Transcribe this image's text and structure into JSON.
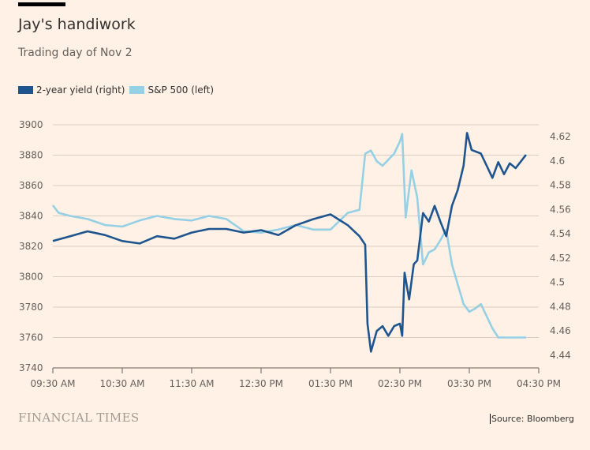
{
  "header": {
    "title": "Jay's handiwork",
    "subtitle": "Trading day of Nov 2"
  },
  "footer": {
    "brand": "FINANCIAL TIMES",
    "source": "Source: Bloomberg"
  },
  "colors": {
    "background": "#fff1e5",
    "yield": "#1f558e",
    "sp500": "#96d0e5",
    "grid": "#d8cdc3"
  },
  "chart_data": {
    "type": "line",
    "title": "Jay's handiwork",
    "subtitle": "Trading day of Nov 2",
    "legend_position": "top-left",
    "grid": true,
    "x_ticks": [
      "09:30 AM",
      "10:30 AM",
      "11:30 AM",
      "12:30 PM",
      "01:30 PM",
      "02:30 PM",
      "03:30 PM",
      "04:30 PM"
    ],
    "xlim": [
      "09:30",
      "16:30"
    ],
    "left_axis": {
      "ylim": [
        3740,
        3900
      ],
      "ticks": [
        "3900",
        "3880",
        "3860",
        "3840",
        "3820",
        "3800",
        "3780",
        "3760",
        "3740"
      ]
    },
    "right_axis": {
      "ylim": [
        4.44,
        4.62
      ],
      "ticks": [
        "4.62",
        "4.6",
        "4.58",
        "4.56",
        "4.54",
        "4.52",
        "4.5",
        "4.48",
        "4.46",
        "4.44"
      ]
    },
    "series": [
      {
        "name": "2-year yield (right)",
        "axis": "right",
        "points": [
          [
            "09:30",
            4.534
          ],
          [
            "09:45",
            4.538
          ],
          [
            "10:00",
            4.542
          ],
          [
            "10:15",
            4.539
          ],
          [
            "10:30",
            4.534
          ],
          [
            "10:45",
            4.532
          ],
          [
            "11:00",
            4.538
          ],
          [
            "11:15",
            4.536
          ],
          [
            "11:30",
            4.541
          ],
          [
            "11:45",
            4.544
          ],
          [
            "12:00",
            4.544
          ],
          [
            "12:15",
            4.541
          ],
          [
            "12:30",
            4.543
          ],
          [
            "12:45",
            4.539
          ],
          [
            "13:00",
            4.547
          ],
          [
            "13:15",
            4.552
          ],
          [
            "13:30",
            4.556
          ],
          [
            "13:45",
            4.547
          ],
          [
            "13:55",
            4.538
          ],
          [
            "14:00",
            4.531
          ],
          [
            "14:02",
            4.466
          ],
          [
            "14:05",
            4.443
          ],
          [
            "14:10",
            4.46
          ],
          [
            "14:15",
            4.464
          ],
          [
            "14:20",
            4.456
          ],
          [
            "14:25",
            4.464
          ],
          [
            "14:30",
            4.466
          ],
          [
            "14:32",
            4.456
          ],
          [
            "14:34",
            4.508
          ],
          [
            "14:38",
            4.486
          ],
          [
            "14:42",
            4.515
          ],
          [
            "14:45",
            4.518
          ],
          [
            "14:50",
            4.557
          ],
          [
            "14:55",
            4.55
          ],
          [
            "15:00",
            4.563
          ],
          [
            "15:05",
            4.55
          ],
          [
            "15:10",
            4.538
          ],
          [
            "15:15",
            4.563
          ],
          [
            "15:20",
            4.576
          ],
          [
            "15:25",
            4.596
          ],
          [
            "15:28",
            4.623
          ],
          [
            "15:32",
            4.609
          ],
          [
            "15:40",
            4.606
          ],
          [
            "15:50",
            4.586
          ],
          [
            "15:55",
            4.599
          ],
          [
            "16:00",
            4.589
          ],
          [
            "16:05",
            4.598
          ],
          [
            "16:10",
            4.594
          ],
          [
            "16:19",
            4.605
          ]
        ]
      },
      {
        "name": "S&P 500 (left)",
        "axis": "left",
        "points": [
          [
            "09:30",
            3847
          ],
          [
            "09:35",
            3842
          ],
          [
            "09:45",
            3840
          ],
          [
            "10:00",
            3838
          ],
          [
            "10:15",
            3834
          ],
          [
            "10:30",
            3833
          ],
          [
            "10:45",
            3837
          ],
          [
            "11:00",
            3840
          ],
          [
            "11:15",
            3838
          ],
          [
            "11:30",
            3837
          ],
          [
            "11:45",
            3840
          ],
          [
            "12:00",
            3838
          ],
          [
            "12:15",
            3830
          ],
          [
            "12:30",
            3829
          ],
          [
            "12:45",
            3831
          ],
          [
            "13:00",
            3834
          ],
          [
            "13:15",
            3831
          ],
          [
            "13:30",
            3831
          ],
          [
            "13:45",
            3842
          ],
          [
            "13:55",
            3844
          ],
          [
            "14:00",
            3881
          ],
          [
            "14:05",
            3883
          ],
          [
            "14:10",
            3876
          ],
          [
            "14:15",
            3873
          ],
          [
            "14:20",
            3877
          ],
          [
            "14:25",
            3881
          ],
          [
            "14:30",
            3889
          ],
          [
            "14:32",
            3894
          ],
          [
            "14:35",
            3839
          ],
          [
            "14:40",
            3870
          ],
          [
            "14:45",
            3852
          ],
          [
            "14:50",
            3808
          ],
          [
            "14:55",
            3816
          ],
          [
            "15:00",
            3818
          ],
          [
            "15:05",
            3824
          ],
          [
            "15:10",
            3831
          ],
          [
            "15:15",
            3808
          ],
          [
            "15:20",
            3795
          ],
          [
            "15:25",
            3782
          ],
          [
            "15:30",
            3777
          ],
          [
            "15:35",
            3779
          ],
          [
            "15:40",
            3782
          ],
          [
            "15:45",
            3774
          ],
          [
            "15:50",
            3766
          ],
          [
            "15:55",
            3760
          ],
          [
            "16:00",
            3760
          ],
          [
            "16:19",
            3760
          ]
        ]
      }
    ]
  }
}
